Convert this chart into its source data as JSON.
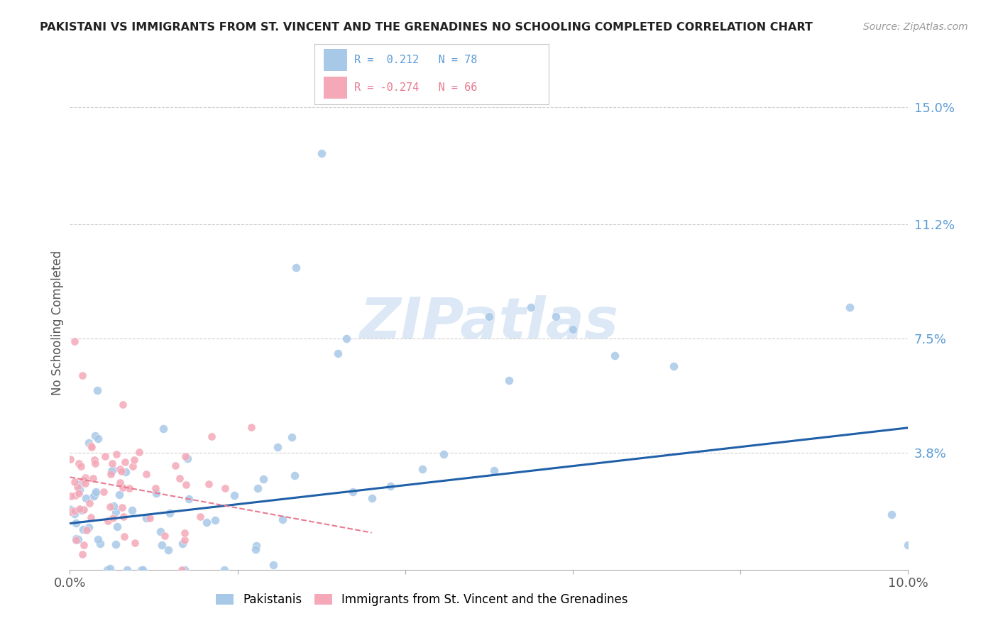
{
  "title": "PAKISTANI VS IMMIGRANTS FROM ST. VINCENT AND THE GRENADINES NO SCHOOLING COMPLETED CORRELATION CHART",
  "source": "Source: ZipAtlas.com",
  "ylabel": "No Schooling Completed",
  "xlim": [
    0.0,
    0.1
  ],
  "ylim": [
    0.0,
    0.16
  ],
  "ytick_labels_right": [
    "15.0%",
    "11.2%",
    "7.5%",
    "3.8%"
  ],
  "ytick_positions_right": [
    0.15,
    0.112,
    0.075,
    0.038
  ],
  "watermark": "ZIPatlas",
  "blue_color": "#a8c8e8",
  "pink_color": "#f4a8b8",
  "line_blue": "#2060a8",
  "line_pink": "#e87a90",
  "pak_trend_start": 0.015,
  "pak_trend_end": 0.046,
  "svg_trend_start": 0.03,
  "svg_trend_end": 0.012
}
